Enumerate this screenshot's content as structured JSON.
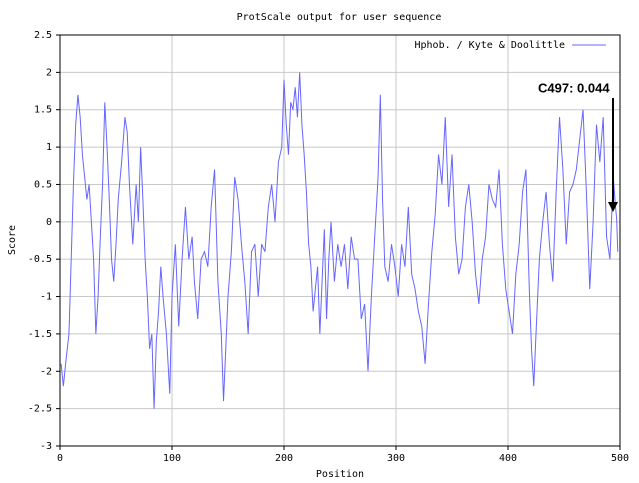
{
  "chart_data": {
    "type": "line",
    "title": "ProtScale output for user sequence",
    "x_label": "Position",
    "y_label": "Score",
    "xlim": [
      0,
      500
    ],
    "ylim": [
      -3,
      2.5
    ],
    "xticks": [
      0,
      100,
      200,
      300,
      400,
      500
    ],
    "yticks": [
      2.5,
      2,
      1.5,
      1,
      0.5,
      0,
      -0.5,
      -1,
      -1.5,
      -2,
      -2.5,
      -3
    ],
    "grid": true,
    "legend": "top-right",
    "annotation": "C497: 0.044",
    "x": [
      1,
      3,
      5,
      8,
      10,
      12,
      14,
      16,
      18,
      20,
      22,
      24,
      26,
      28,
      30,
      32,
      34,
      36,
      38,
      40,
      42,
      44,
      46,
      48,
      50,
      52,
      55,
      58,
      60,
      62,
      65,
      68,
      70,
      72,
      74,
      76,
      78,
      80,
      82,
      84,
      86,
      88,
      90,
      92,
      95,
      98,
      100,
      103,
      106,
      109,
      112,
      115,
      118,
      120,
      123,
      126,
      129,
      132,
      135,
      138,
      141,
      144,
      146,
      148,
      150,
      153,
      156,
      159,
      162,
      165,
      168,
      171,
      174,
      177,
      180,
      183,
      186,
      189,
      192,
      195,
      198,
      200,
      202,
      204,
      206,
      208,
      210,
      212,
      214,
      216,
      218,
      220,
      222,
      224,
      226,
      228,
      230,
      232,
      234,
      236,
      238,
      240,
      242,
      245,
      248,
      251,
      254,
      257,
      260,
      263,
      266,
      269,
      272,
      275,
      278,
      281,
      284,
      286,
      288,
      290,
      293,
      296,
      299,
      302,
      305,
      308,
      311,
      314,
      317,
      320,
      323,
      326,
      329,
      332,
      335,
      338,
      341,
      344,
      347,
      350,
      353,
      356,
      359,
      362,
      365,
      368,
      371,
      374,
      377,
      380,
      383,
      386,
      389,
      392,
      395,
      398,
      401,
      404,
      407,
      410,
      413,
      416,
      419,
      421,
      423,
      425,
      428,
      431,
      434,
      437,
      440,
      443,
      446,
      449,
      452,
      455,
      458,
      461,
      464,
      467,
      470,
      473,
      476,
      479,
      482,
      485,
      488,
      491,
      494,
      496,
      497,
      498
    ],
    "series": [
      {
        "name": "Hphob. / Kyte & Doolittle",
        "color": "#6666ff",
        "values": [
          -1.9,
          -2.2,
          -1.9,
          -1.5,
          -0.5,
          0.5,
          1.3,
          1.7,
          1.4,
          0.9,
          0.6,
          0.3,
          0.5,
          0.0,
          -0.5,
          -1.5,
          -1.0,
          -0.2,
          0.5,
          1.6,
          1.0,
          0.3,
          -0.5,
          -0.8,
          -0.3,
          0.3,
          0.8,
          1.4,
          1.2,
          0.5,
          -0.3,
          0.5,
          0.0,
          1.0,
          0.3,
          -0.5,
          -1.0,
          -1.7,
          -1.5,
          -2.5,
          -1.6,
          -1.2,
          -0.6,
          -1.0,
          -1.5,
          -2.3,
          -1.0,
          -0.3,
          -1.4,
          -0.5,
          0.2,
          -0.5,
          -0.2,
          -0.8,
          -1.3,
          -0.5,
          -0.4,
          -0.6,
          0.2,
          0.7,
          -0.8,
          -1.5,
          -2.4,
          -1.7,
          -1.0,
          -0.4,
          0.6,
          0.3,
          -0.3,
          -0.8,
          -1.5,
          -0.4,
          -0.3,
          -1.0,
          -0.3,
          -0.4,
          0.2,
          0.5,
          0.0,
          0.8,
          1.0,
          1.9,
          1.3,
          0.9,
          1.6,
          1.5,
          1.8,
          1.4,
          2.0,
          1.3,
          0.9,
          0.4,
          -0.3,
          -0.6,
          -1.2,
          -0.9,
          -0.6,
          -1.5,
          -0.8,
          -0.1,
          -1.3,
          -0.5,
          0.0,
          -0.8,
          -0.3,
          -0.6,
          -0.3,
          -0.9,
          -0.2,
          -0.5,
          -0.5,
          -1.3,
          -1.1,
          -2.0,
          -1.0,
          -0.2,
          0.6,
          1.7,
          0.3,
          -0.6,
          -0.8,
          -0.3,
          -0.6,
          -1.0,
          -0.3,
          -0.6,
          0.2,
          -0.7,
          -0.9,
          -1.2,
          -1.4,
          -1.9,
          -1.1,
          -0.4,
          0.1,
          0.9,
          0.5,
          1.4,
          0.2,
          0.9,
          -0.2,
          -0.7,
          -0.5,
          0.2,
          0.5,
          0.0,
          -0.7,
          -1.1,
          -0.5,
          -0.2,
          0.5,
          0.3,
          0.2,
          0.7,
          -0.3,
          -0.9,
          -1.2,
          -1.5,
          -0.7,
          -0.3,
          0.4,
          0.7,
          -0.9,
          -1.7,
          -2.2,
          -1.5,
          -0.5,
          0.0,
          0.4,
          -0.3,
          -0.8,
          0.4,
          1.4,
          0.7,
          -0.3,
          0.4,
          0.5,
          0.7,
          1.1,
          1.5,
          0.4,
          -0.9,
          0.0,
          1.3,
          0.8,
          1.4,
          -0.2,
          -0.5,
          0.6,
          0.2,
          0.044,
          -0.4
        ]
      }
    ]
  }
}
